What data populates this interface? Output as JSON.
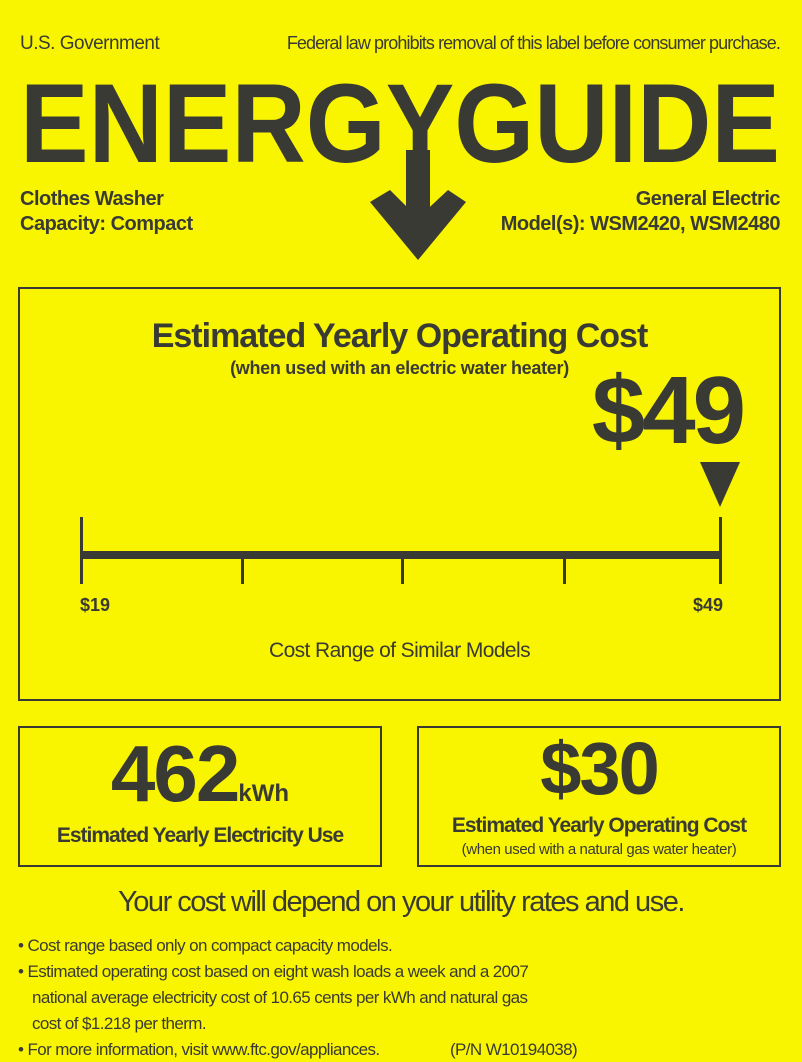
{
  "header": {
    "government": "U.S. Government",
    "notice": "Federal law prohibits removal of this label before consumer purchase.",
    "logo_text": "ENERGYGUIDE",
    "appliance_type": "Clothes Washer",
    "capacity": "Capacity: Compact",
    "manufacturer": "General Electric",
    "models": "Model(s): WSM2420, WSM2480"
  },
  "main_cost": {
    "title": "Estimated Yearly Operating Cost",
    "subtitle": "(when used with an electric water heater)",
    "value": "$49",
    "range_min_label": "$19",
    "range_max_label": "$49",
    "range_min": 19,
    "range_max": 49,
    "marker_value": 49,
    "range_caption": "Cost Range of Similar Models"
  },
  "electricity": {
    "value": "462",
    "unit": "kWh",
    "label": "Estimated Yearly Electricity Use"
  },
  "gas_cost": {
    "value": "$30",
    "label": "Estimated Yearly Operating Cost",
    "sublabel": "(when used with a natural gas water heater)"
  },
  "footer": {
    "headline": "Your cost will depend on your utility rates and use.",
    "bullets": [
      "Cost range based only on compact capacity models.",
      "Estimated operating cost based on eight wash loads a week and a 2007",
      "national average electricity cost of 10.65 cents per kWh and natural gas",
      "cost of  $1.218 per therm.",
      "For more information, visit www.ftc.gov/appliances."
    ],
    "part_number": "(P/N W10194038)"
  },
  "colors": {
    "background": "#f9f500",
    "ink": "#3a3a34"
  }
}
